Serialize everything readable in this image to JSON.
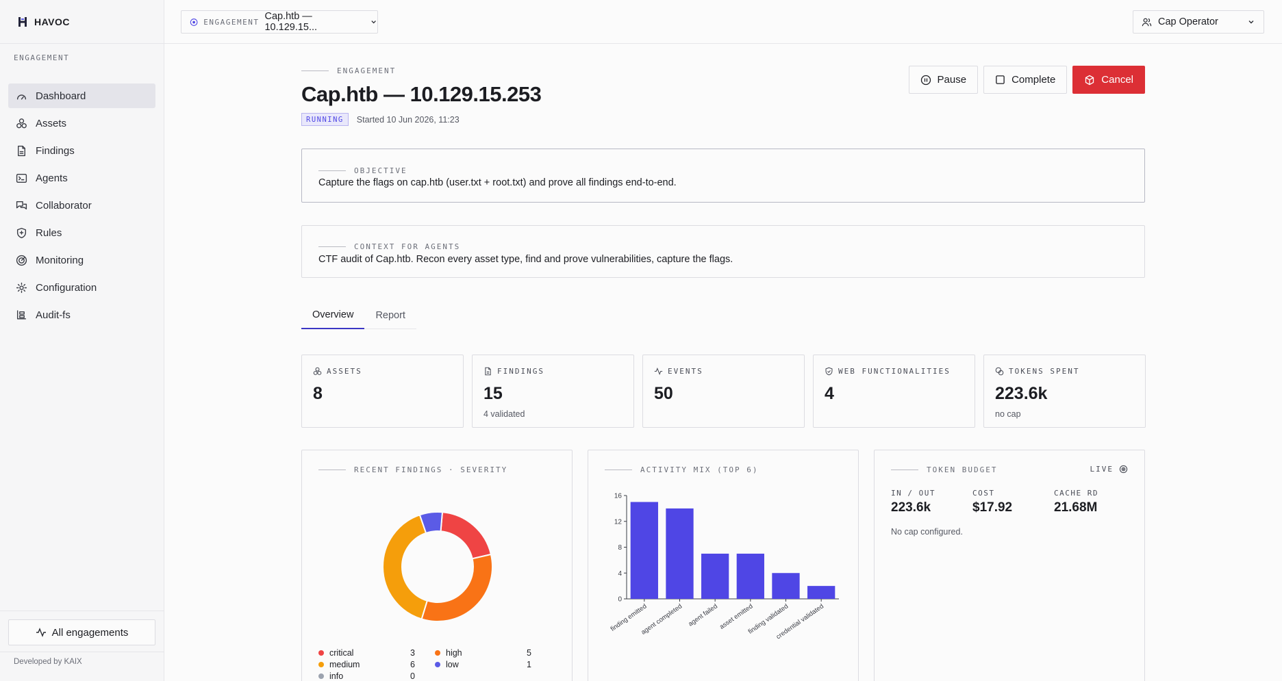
{
  "brand": {
    "name": "HAVOC"
  },
  "sidebar": {
    "section": "ENGAGEMENT",
    "items": [
      {
        "label": "Dashboard",
        "icon": "dashboard-icon",
        "active": true
      },
      {
        "label": "Assets",
        "icon": "assets-icon"
      },
      {
        "label": "Findings",
        "icon": "findings-icon"
      },
      {
        "label": "Agents",
        "icon": "agents-icon"
      },
      {
        "label": "Collaborator",
        "icon": "collaborator-icon"
      },
      {
        "label": "Rules",
        "icon": "rules-icon"
      },
      {
        "label": "Monitoring",
        "icon": "monitoring-icon"
      },
      {
        "label": "Configuration",
        "icon": "configuration-icon"
      },
      {
        "label": "Audit-fs",
        "icon": "audit-fs-icon"
      }
    ],
    "all_engagements": "All engagements",
    "developed_by": "Developed by KAIX"
  },
  "topbar": {
    "switch_label": "ENGAGEMENT",
    "switch_value": "Cap.htb — 10.129.15...",
    "user": "Cap Operator"
  },
  "page": {
    "eyebrow": "ENGAGEMENT",
    "title": "Cap.htb — 10.129.15.253",
    "status": "RUNNING",
    "started": "Started 10 Jun 2026, 11:23",
    "actions": {
      "pause": "Pause",
      "complete": "Complete",
      "cancel": "Cancel"
    }
  },
  "objective": {
    "label": "OBJECTIVE",
    "text": "Capture the flags on cap.htb (user.txt + root.txt) and prove all findings end-to-end."
  },
  "context": {
    "label": "CONTEXT FOR AGENTS",
    "text": "CTF audit of Cap.htb. Recon every asset type, find and prove vulnerabilities, capture the flags."
  },
  "tabs": [
    {
      "label": "Overview",
      "active": true
    },
    {
      "label": "Report"
    }
  ],
  "stats": {
    "assets": {
      "label": "ASSETS",
      "value": "8"
    },
    "findings": {
      "label": "FINDINGS",
      "value": "15",
      "sub": "4 validated"
    },
    "events": {
      "label": "EVENTS",
      "value": "50"
    },
    "web": {
      "label": "WEB FUNCTIONALITIES",
      "value": "4"
    },
    "tokens": {
      "label": "TOKENS SPENT",
      "value": "223.6k",
      "sub": "no cap"
    }
  },
  "severity": {
    "title": "RECENT FINDINGS · SEVERITY",
    "legend": [
      {
        "label": "critical",
        "count": "3",
        "color": "#ef4444"
      },
      {
        "label": "high",
        "count": "5",
        "color": "#f97316"
      },
      {
        "label": "medium",
        "count": "6",
        "color": "#f59e0b"
      },
      {
        "label": "low",
        "count": "1",
        "color": "#5b5be6"
      },
      {
        "label": "info",
        "count": "0",
        "color": "#9ca3af"
      }
    ]
  },
  "activity": {
    "title": "ACTIVITY MIX (TOP 6)"
  },
  "budget": {
    "title": "TOKEN BUDGET",
    "live": "LIVE",
    "in_out_label": "IN / OUT",
    "in_out": "223.6k",
    "cost_label": "COST",
    "cost": "$17.92",
    "cache_label": "CACHE RD",
    "cache": "21.68M",
    "note": "No cap configured."
  },
  "chart_data": [
    {
      "type": "pie",
      "title": "RECENT FINDINGS · SEVERITY",
      "categories": [
        "critical",
        "high",
        "medium",
        "low",
        "info"
      ],
      "values": [
        3,
        5,
        6,
        1,
        0
      ],
      "colors": [
        "#ef4444",
        "#f97316",
        "#f59e0b",
        "#5b5be6",
        "#9ca3af"
      ],
      "donut": true
    },
    {
      "type": "bar",
      "title": "ACTIVITY MIX (TOP 6)",
      "categories": [
        "finding emitted",
        "agent completed",
        "agent failed",
        "asset emitted",
        "finding validated",
        "credential validated"
      ],
      "values": [
        15,
        14,
        7,
        7,
        4,
        2
      ],
      "ylim": [
        0,
        16
      ],
      "yticks": [
        0,
        4,
        8,
        12,
        16
      ],
      "color": "#4f46e5",
      "grid": false
    }
  ]
}
